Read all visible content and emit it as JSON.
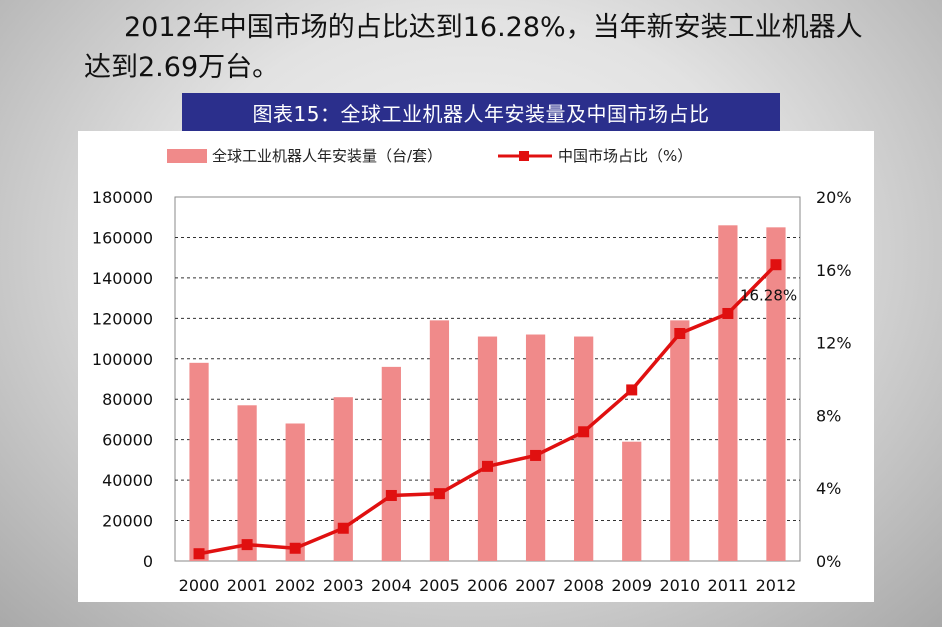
{
  "headline": "2012年中国市场的占比达到16.28%，当年新安装工业机器人达到2.69万台。",
  "banner_title": "图表15：全球工业机器人年安装量及中国市场占比",
  "colors": {
    "bar": "#f08a8a",
    "line": "#e01010",
    "banner": "#2b2f8c"
  },
  "chart_data": {
    "type": "bar",
    "categories": [
      "2000",
      "2001",
      "2002",
      "2003",
      "2004",
      "2005",
      "2006",
      "2007",
      "2008",
      "2009",
      "2010",
      "2011",
      "2012"
    ],
    "series": [
      {
        "name": "全球工业机器人年安装量（台/套）",
        "type": "bar",
        "axis": "left",
        "values": [
          98000,
          77000,
          68000,
          81000,
          96000,
          119000,
          111000,
          112000,
          111000,
          59000,
          119000,
          166000,
          165000
        ]
      },
      {
        "name": "中国市场占比（%）",
        "type": "line",
        "axis": "right",
        "values": [
          0.4,
          0.9,
          0.7,
          1.8,
          3.6,
          3.7,
          5.2,
          5.8,
          7.1,
          9.4,
          12.5,
          13.6,
          16.28
        ]
      }
    ],
    "ylim": [
      0,
      180000
    ],
    "yticks": [
      "0",
      "20000",
      "40000",
      "60000",
      "80000",
      "100000",
      "120000",
      "140000",
      "160000",
      "180000"
    ],
    "y2lim": [
      0,
      20
    ],
    "y2ticks": [
      "0%",
      "4%",
      "8%",
      "12%",
      "16%",
      "20%"
    ],
    "annotation": "16.28%",
    "legend_position": "top",
    "grid": "horizontal dashed"
  }
}
